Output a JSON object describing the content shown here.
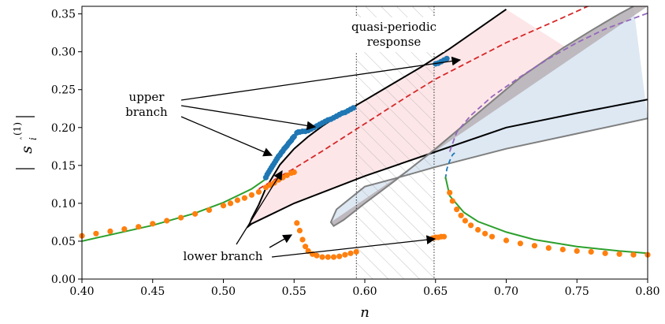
{
  "chart_data": {
    "type": "line",
    "xlabel": "n",
    "ylabel": "|s_i^(1)|",
    "xlim": [
      0.4,
      0.8
    ],
    "ylim": [
      0.0,
      0.36
    ],
    "x_ticks": [
      "0.40",
      "0.45",
      "0.50",
      "0.55",
      "0.60",
      "0.65",
      "0.70",
      "0.75",
      "0.80"
    ],
    "y_ticks": [
      "0.00",
      "0.05",
      "0.10",
      "0.15",
      "0.20",
      "0.25",
      "0.30",
      "0.35"
    ],
    "grid": false,
    "legend": "none",
    "quasi_periodic_region": [
      0.594,
      0.649
    ],
    "annotations": {
      "quasi_periodic": [
        "quasi-periodic",
        "response"
      ],
      "upper_branch": [
        "upper",
        "branch"
      ],
      "lower_branch": "lower branch"
    },
    "colors": {
      "black_curve": "#000000",
      "red_dashed": "#d62728",
      "gray_curve": "#7f7f7f",
      "purple_dashed": "#9467bd",
      "blue_dashed": "#1f77b4",
      "green_curve": "#2ca02c",
      "blue_markers": "#1f77b4",
      "orange_markers": "#ff7f0e",
      "pink_fill": "#fde6e8",
      "lightblue_fill": "#dde8f3",
      "gray_fill": "#b8b0b4"
    },
    "series": [
      {
        "style": "black-solid",
        "x": [
          0.8,
          0.75,
          0.7,
          0.65,
          0.6,
          0.55,
          0.53,
          0.52,
          0.518,
          0.52,
          0.525,
          0.53,
          0.54,
          0.55,
          0.56,
          0.57,
          0.58,
          0.59,
          0.6,
          0.62,
          0.64,
          0.66,
          0.68,
          0.7
        ],
        "y": [
          0.237,
          0.219,
          0.2,
          0.168,
          0.136,
          0.1,
          0.082,
          0.073,
          0.07,
          0.08,
          0.098,
          0.12,
          0.151,
          0.172,
          0.188,
          0.202,
          0.214,
          0.225,
          0.236,
          0.258,
          0.28,
          0.304,
          0.33,
          0.356
        ]
      },
      {
        "style": "red-dashed",
        "x": [
          0.525,
          0.535,
          0.55,
          0.57,
          0.6,
          0.63,
          0.65,
          0.7,
          0.74,
          0.76
        ],
        "y": [
          0.119,
          0.13,
          0.146,
          0.169,
          0.205,
          0.241,
          0.264,
          0.312,
          0.345,
          0.362
        ]
      },
      {
        "style": "gray-solid",
        "x": [
          0.8,
          0.75,
          0.7,
          0.65,
          0.62,
          0.6,
          0.58,
          0.576,
          0.578,
          0.585,
          0.6,
          0.62,
          0.65,
          0.68,
          0.71,
          0.74,
          0.76,
          0.78,
          0.79
        ],
        "y": [
          0.212,
          0.192,
          0.172,
          0.148,
          0.132,
          0.122,
          0.092,
          0.075,
          0.07,
          0.078,
          0.1,
          0.128,
          0.172,
          0.219,
          0.266,
          0.305,
          0.328,
          0.35,
          0.36
        ]
      },
      {
        "style": "purple-dashed",
        "x": [
          0.66,
          0.665,
          0.675,
          0.69,
          0.71,
          0.73,
          0.75,
          0.77,
          0.79,
          0.8
        ],
        "y": [
          0.168,
          0.194,
          0.216,
          0.241,
          0.267,
          0.291,
          0.312,
          0.33,
          0.344,
          0.351
        ]
      },
      {
        "style": "blue-dashed",
        "x": [
          0.657,
          0.658,
          0.66,
          0.662,
          0.665
        ],
        "y": [
          0.132,
          0.145,
          0.156,
          0.164,
          0.169
        ]
      },
      {
        "style": "green-solid",
        "x": [
          0.4,
          0.45,
          0.48,
          0.5,
          0.52,
          0.53
        ],
        "y": [
          0.05,
          0.071,
          0.087,
          0.101,
          0.119,
          0.132
        ]
      },
      {
        "style": "green-solid",
        "x": [
          0.657,
          0.66,
          0.67,
          0.68,
          0.7,
          0.72,
          0.75,
          0.78,
          0.8
        ],
        "y": [
          0.135,
          0.11,
          0.088,
          0.076,
          0.062,
          0.052,
          0.043,
          0.037,
          0.034
        ]
      },
      {
        "style": "blue-markers",
        "x": [
          0.53,
          0.531,
          0.532,
          0.533,
          0.534,
          0.535,
          0.536,
          0.537,
          0.538,
          0.539,
          0.54,
          0.541,
          0.542,
          0.543,
          0.544,
          0.545,
          0.546,
          0.547,
          0.548,
          0.549,
          0.55,
          0.552,
          0.553,
          0.554,
          0.556,
          0.558,
          0.56,
          0.562,
          0.564,
          0.566,
          0.568,
          0.57,
          0.572,
          0.574,
          0.576,
          0.578,
          0.58,
          0.582,
          0.584,
          0.586,
          0.588,
          0.59,
          0.592,
          0.65,
          0.652,
          0.654,
          0.656,
          0.658
        ],
        "y": [
          0.134,
          0.138,
          0.141,
          0.144,
          0.147,
          0.15,
          0.153,
          0.156,
          0.159,
          0.162,
          0.164,
          0.167,
          0.169,
          0.172,
          0.174,
          0.176,
          0.179,
          0.181,
          0.183,
          0.186,
          0.188,
          0.193,
          0.194,
          0.194,
          0.195,
          0.195,
          0.196,
          0.198,
          0.2,
          0.202,
          0.204,
          0.206,
          0.208,
          0.21,
          0.211,
          0.213,
          0.215,
          0.217,
          0.219,
          0.22,
          0.222,
          0.224,
          0.226,
          0.284,
          0.285,
          0.287,
          0.289,
          0.291
        ]
      },
      {
        "style": "orange-markers",
        "x": [
          0.4,
          0.41,
          0.42,
          0.43,
          0.44,
          0.45,
          0.46,
          0.47,
          0.48,
          0.49,
          0.5,
          0.505,
          0.51,
          0.515,
          0.52,
          0.525,
          0.53,
          0.533,
          0.536,
          0.539,
          0.542,
          0.545,
          0.548,
          0.55,
          0.552,
          0.554,
          0.556,
          0.558,
          0.56,
          0.563,
          0.566,
          0.57,
          0.574,
          0.578,
          0.582,
          0.586,
          0.59,
          0.594,
          0.648,
          0.65,
          0.652,
          0.654,
          0.656,
          0.66,
          0.662,
          0.665,
          0.668,
          0.671,
          0.675,
          0.68,
          0.685,
          0.69,
          0.7,
          0.71,
          0.72,
          0.73,
          0.74,
          0.75,
          0.76,
          0.77,
          0.78,
          0.79,
          0.8
        ],
        "y": [
          0.057,
          0.06,
          0.063,
          0.066,
          0.069,
          0.073,
          0.077,
          0.081,
          0.086,
          0.091,
          0.097,
          0.1,
          0.104,
          0.107,
          0.111,
          0.115,
          0.121,
          0.124,
          0.127,
          0.131,
          0.134,
          0.137,
          0.14,
          0.141,
          0.074,
          0.064,
          0.052,
          0.043,
          0.037,
          0.033,
          0.031,
          0.029,
          0.029,
          0.029,
          0.03,
          0.032,
          0.034,
          0.036,
          0.054,
          0.055,
          0.055,
          0.056,
          0.056,
          0.114,
          0.103,
          0.092,
          0.084,
          0.077,
          0.071,
          0.065,
          0.06,
          0.056,
          0.051,
          0.047,
          0.044,
          0.041,
          0.039,
          0.037,
          0.036,
          0.034,
          0.033,
          0.032,
          0.032
        ]
      }
    ]
  }
}
